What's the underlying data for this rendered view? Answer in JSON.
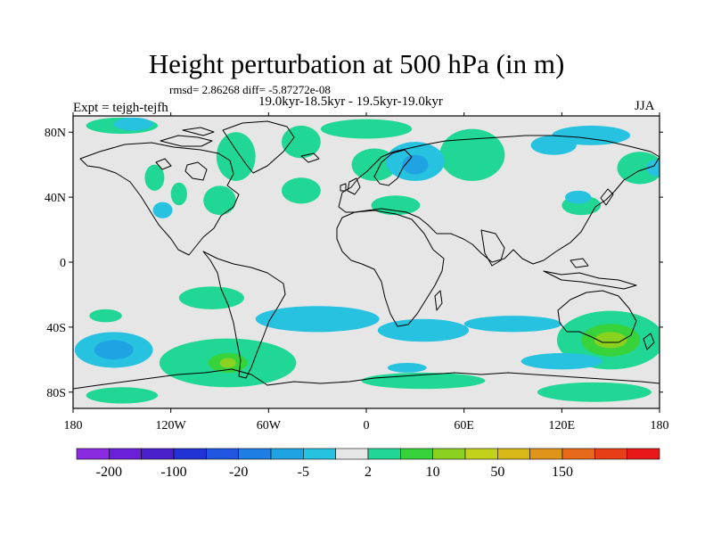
{
  "title": "Height perturbation at 500 hPa (in m)",
  "stats": "rmsd= 2.86268 diff= -5.87272e-08",
  "period": "19.0kyr-18.5kyr - 19.5kyr-19.0kyr",
  "experiment": "Expt = tejgh-tejfh",
  "season": "JJA",
  "map": {
    "projection": "cylindrical-equidistant",
    "lon_range": [
      -180,
      180
    ],
    "lat_range": [
      -90,
      90
    ],
    "lon_ticks": [
      {
        "value": -180,
        "label": "180"
      },
      {
        "value": -120,
        "label": "120W"
      },
      {
        "value": -60,
        "label": "60W"
      },
      {
        "value": 0,
        "label": "0"
      },
      {
        "value": 60,
        "label": "60E"
      },
      {
        "value": 120,
        "label": "120E"
      },
      {
        "value": 180,
        "label": "180"
      }
    ],
    "lat_ticks": [
      {
        "value": 80,
        "label": "80N"
      },
      {
        "value": 40,
        "label": "40N"
      },
      {
        "value": 0,
        "label": "0"
      },
      {
        "value": -40,
        "label": "40S"
      },
      {
        "value": -80,
        "label": "80S"
      }
    ],
    "background_color": "#e6e6e6",
    "coastline_color": "#000000"
  },
  "colorbar": {
    "colors": [
      "#8a2be2",
      "#6a1fd8",
      "#4a20cc",
      "#2233d6",
      "#1f55e0",
      "#1e7ee3",
      "#1fa3e2",
      "#26c2e0",
      "#e6e6e6",
      "#20d796",
      "#38d23a",
      "#8ad21f",
      "#c2d21a",
      "#d8b818",
      "#e0941a",
      "#e66a1a",
      "#e83e18",
      "#e81818"
    ],
    "labels": [
      "-200",
      "-100",
      "-20",
      "-5",
      "2",
      "10",
      "50",
      "150"
    ],
    "label_positions": [
      1,
      3,
      5,
      7,
      9,
      11,
      13,
      15
    ]
  },
  "fields": [
    {
      "color_index": 9,
      "lon": -80,
      "lat": 65,
      "rx": 12,
      "ry": 15
    },
    {
      "color_index": 9,
      "lon": -40,
      "lat": 74,
      "rx": 12,
      "ry": 10
    },
    {
      "color_index": 9,
      "lon": 0,
      "lat": 82,
      "rx": 28,
      "ry": 6
    },
    {
      "color_index": 9,
      "lon": -150,
      "lat": 84,
      "rx": 22,
      "ry": 5
    },
    {
      "color_index": 9,
      "lon": 65,
      "lat": 66,
      "rx": 20,
      "ry": 16
    },
    {
      "color_index": 9,
      "lon": 5,
      "lat": 60,
      "rx": 14,
      "ry": 10
    },
    {
      "color_index": 9,
      "lon": -90,
      "lat": 38,
      "rx": 10,
      "ry": 9
    },
    {
      "color_index": 9,
      "lon": -40,
      "lat": 44,
      "rx": 12,
      "ry": 8
    },
    {
      "color_index": 9,
      "lon": 18,
      "lat": 35,
      "rx": 15,
      "ry": 6
    },
    {
      "color_index": 9,
      "lon": 168,
      "lat": 58,
      "rx": 14,
      "ry": 10
    },
    {
      "color_index": 9,
      "lon": 132,
      "lat": 35,
      "rx": 12,
      "ry": 6
    },
    {
      "color_index": 9,
      "lon": -130,
      "lat": 52,
      "rx": 6,
      "ry": 8
    },
    {
      "color_index": 9,
      "lon": -115,
      "lat": 42,
      "rx": 5,
      "ry": 7
    },
    {
      "color_index": 9,
      "lon": -95,
      "lat": -22,
      "rx": 20,
      "ry": 7
    },
    {
      "color_index": 9,
      "lon": -160,
      "lat": -33,
      "rx": 10,
      "ry": 4
    },
    {
      "color_index": 9,
      "lon": -85,
      "lat": -62,
      "rx": 42,
      "ry": 15
    },
    {
      "color_index": 9,
      "lon": 35,
      "lat": -73,
      "rx": 38,
      "ry": 5
    },
    {
      "color_index": 9,
      "lon": 150,
      "lat": -48,
      "rx": 33,
      "ry": 18
    },
    {
      "color_index": 9,
      "lon": 140,
      "lat": -80,
      "rx": 35,
      "ry": 6
    },
    {
      "color_index": 9,
      "lon": -150,
      "lat": -82,
      "rx": 22,
      "ry": 5
    },
    {
      "color_index": 10,
      "lon": -85,
      "lat": -62,
      "rx": 12,
      "ry": 6
    },
    {
      "color_index": 10,
      "lon": 150,
      "lat": -48,
      "rx": 18,
      "ry": 10
    },
    {
      "color_index": 11,
      "lon": -85,
      "lat": -62,
      "rx": 5,
      "ry": 3
    },
    {
      "color_index": 11,
      "lon": 150,
      "lat": -48,
      "rx": 10,
      "ry": 5
    },
    {
      "color_index": 7,
      "lon": 30,
      "lat": 62,
      "rx": 18,
      "ry": 12
    },
    {
      "color_index": 7,
      "lon": 138,
      "lat": 78,
      "rx": 24,
      "ry": 6
    },
    {
      "color_index": 7,
      "lon": 115,
      "lat": 72,
      "rx": 14,
      "ry": 6
    },
    {
      "color_index": 7,
      "lon": 130,
      "lat": 40,
      "rx": 8,
      "ry": 4
    },
    {
      "color_index": 7,
      "lon": -143,
      "lat": 85,
      "rx": 12,
      "ry": 4
    },
    {
      "color_index": 7,
      "lon": -125,
      "lat": 32,
      "rx": 6,
      "ry": 5
    },
    {
      "color_index": 7,
      "lon": 178,
      "lat": 58,
      "rx": 6,
      "ry": 5
    },
    {
      "color_index": 7,
      "lon": -30,
      "lat": -35,
      "rx": 38,
      "ry": 8
    },
    {
      "color_index": 7,
      "lon": 35,
      "lat": -42,
      "rx": 28,
      "ry": 7
    },
    {
      "color_index": 7,
      "lon": 90,
      "lat": -38,
      "rx": 30,
      "ry": 5
    },
    {
      "color_index": 7,
      "lon": 120,
      "lat": -61,
      "rx": 25,
      "ry": 5
    },
    {
      "color_index": 7,
      "lon": -155,
      "lat": -54,
      "rx": 24,
      "ry": 11
    },
    {
      "color_index": 7,
      "lon": 25,
      "lat": -65,
      "rx": 12,
      "ry": 3
    },
    {
      "color_index": 6,
      "lon": 30,
      "lat": 60,
      "rx": 8,
      "ry": 6
    },
    {
      "color_index": 6,
      "lon": -155,
      "lat": -54,
      "rx": 12,
      "ry": 6
    }
  ]
}
